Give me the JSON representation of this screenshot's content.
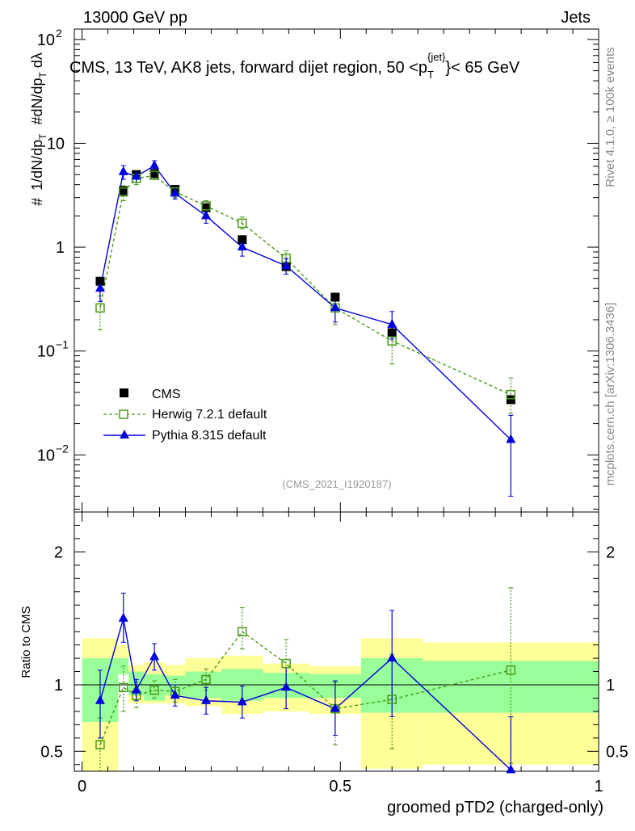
{
  "header": {
    "energy": "13000 GeV pp",
    "category": "Jets"
  },
  "side_labels": {
    "rivet": "Rivet 4.1.0, ≥ 100k events",
    "site": "mcplots.cern.ch [arXiv:1306.3436]"
  },
  "chart_data": {
    "type": "line",
    "title": "CMS, 13 TeV, AK8 jets, forward dijet region, 50 <p",
    "title_sup": "{jet}",
    "title_sub": "T",
    "title_end": "}< 65 GeV",
    "analysis_id": "(CMS_2021_I1920187)",
    "xlabel": "groomed pTD2 (charged-only)",
    "ylabel_main": "#1/dN/dp_T #d^2N/dp_T dλ",
    "ylabel_ratio": "Ratio to CMS",
    "xlim": [
      0,
      1
    ],
    "ylim_main_log10": [
      -2.55,
      2.1
    ],
    "ylim_ratio": [
      0.35,
      2.3
    ],
    "x_ticks": [
      {
        "v": 0,
        "label": "0"
      },
      {
        "v": 0.5,
        "label": "0.5"
      },
      {
        "v": 1,
        "label": "1"
      }
    ],
    "main_ticks": [
      {
        "exp": 2,
        "base": "10",
        "sup": "2"
      },
      {
        "exp": 1,
        "base": "10",
        "sup": ""
      },
      {
        "exp": 0,
        "base": "1",
        "sup": ""
      },
      {
        "exp": -1,
        "base": "10",
        "sup": "−1"
      },
      {
        "exp": -2,
        "base": "10",
        "sup": "−2"
      }
    ],
    "ratio_ticks": [
      {
        "v": 0.5,
        "label": "0.5"
      },
      {
        "v": 1,
        "label": "1"
      },
      {
        "v": 2,
        "label": "2"
      }
    ],
    "bin_edges": [
      0,
      0.07,
      0.09,
      0.12,
      0.16,
      0.2,
      0.27,
      0.35,
      0.44,
      0.54,
      0.66,
      1.0
    ],
    "band_green": [
      [
        0.72,
        1.2
      ],
      [
        1.08,
        1.2
      ],
      [
        0.92,
        1.1
      ],
      [
        0.88,
        1.08
      ],
      [
        0.92,
        1.07
      ],
      [
        0.9,
        1.1
      ],
      [
        0.88,
        1.12
      ],
      [
        0.9,
        1.09
      ],
      [
        0.9,
        1.08
      ],
      [
        0.79,
        1.2
      ],
      [
        0.79,
        1.18
      ]
    ],
    "band_yellow": [
      [
        0.33,
        1.35
      ],
      [
        1.08,
        1.3
      ],
      [
        0.86,
        1.15
      ],
      [
        0.86,
        1.17
      ],
      [
        0.86,
        1.15
      ],
      [
        0.84,
        1.2
      ],
      [
        0.78,
        1.22
      ],
      [
        0.8,
        1.16
      ],
      [
        0.78,
        1.14
      ],
      [
        0.37,
        1.35
      ],
      [
        0.4,
        1.32
      ]
    ],
    "series": [
      {
        "name": "CMS",
        "color": "#000000",
        "marker": "square-filled",
        "x": [
          0.035,
          0.08,
          0.105,
          0.14,
          0.18,
          0.24,
          0.31,
          0.395,
          0.49,
          0.6,
          0.83
        ],
        "y": [
          0.47,
          3.5,
          5.0,
          5.1,
          3.6,
          2.4,
          1.18,
          0.65,
          0.33,
          0.15,
          0.034
        ]
      },
      {
        "name": "Herwig 7.2.1 default",
        "color": "#4a9a1a",
        "marker": "square-open",
        "x": [
          0.035,
          0.08,
          0.105,
          0.14,
          0.18,
          0.24,
          0.31,
          0.395,
          0.49,
          0.6,
          0.83
        ],
        "y": [
          0.26,
          3.4,
          4.6,
          4.9,
          3.4,
          2.5,
          1.7,
          0.78,
          0.26,
          0.125,
          0.038
        ],
        "yerr_lo": [
          0.16,
          2.8,
          4.0,
          4.5,
          3.0,
          2.2,
          1.5,
          0.65,
          0.18,
          0.075,
          0.025
        ],
        "yerr_hi": [
          0.34,
          3.9,
          5.1,
          5.3,
          3.8,
          2.8,
          1.95,
          0.92,
          0.33,
          0.17,
          0.055
        ],
        "ratio": [
          0.55,
          0.98,
          0.92,
          0.96,
          0.95,
          1.04,
          1.4,
          1.16,
          0.82,
          0.89,
          1.11
        ],
        "ratio_lo": [
          0.33,
          0.8,
          0.83,
          0.9,
          0.87,
          0.96,
          1.27,
          0.97,
          0.55,
          0.52,
          0.41
        ],
        "ratio_hi": [
          0.75,
          1.14,
          1.02,
          1.03,
          1.04,
          1.12,
          1.58,
          1.34,
          1.02,
          1.23,
          1.73
        ]
      },
      {
        "name": "Pythia 8.315 default",
        "color": "#0000dd",
        "marker": "triangle-filled",
        "x": [
          0.035,
          0.08,
          0.105,
          0.14,
          0.18,
          0.24,
          0.31,
          0.395,
          0.49,
          0.6,
          0.83
        ],
        "y": [
          0.4,
          5.3,
          4.8,
          6.1,
          3.3,
          2.0,
          1.0,
          0.66,
          0.26,
          0.18,
          0.014
        ],
        "yerr_lo": [
          0.3,
          4.5,
          4.2,
          5.5,
          2.9,
          1.7,
          0.82,
          0.55,
          0.19,
          0.13,
          0.004
        ],
        "yerr_hi": [
          0.48,
          6.1,
          5.4,
          6.8,
          3.7,
          2.3,
          1.18,
          0.78,
          0.33,
          0.24,
          0.024
        ],
        "ratio": [
          0.88,
          1.5,
          0.96,
          1.21,
          0.92,
          0.88,
          0.87,
          0.98,
          0.82,
          1.2,
          0.36
        ],
        "ratio_lo": [
          0.6,
          1.32,
          0.88,
          1.11,
          0.84,
          0.78,
          0.75,
          0.82,
          0.62,
          0.76,
          0.33
        ],
        "ratio_hi": [
          1.11,
          1.69,
          1.04,
          1.31,
          1.0,
          0.98,
          0.99,
          1.13,
          1.03,
          1.56,
          0.76
        ]
      }
    ],
    "legend": [
      "CMS",
      "Herwig 7.2.1 default",
      "Pythia 8.315 default"
    ]
  }
}
